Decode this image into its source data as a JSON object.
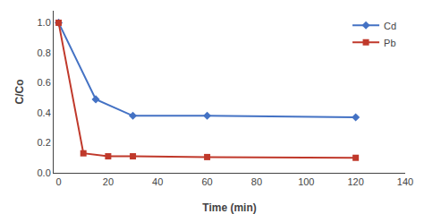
{
  "chart_data": {
    "type": "line",
    "xlabel": "Time (min)",
    "ylabel": "C/Co",
    "series": [
      {
        "name": "Cd",
        "color": "#4472C4",
        "marker": "diamond",
        "line_style": "solid",
        "x": [
          0,
          15,
          30,
          60,
          120
        ],
        "values": [
          1.0,
          0.49,
          0.38,
          0.38,
          0.37
        ]
      },
      {
        "name": "Pb",
        "color": "#C0392B",
        "marker": "square",
        "line_style": "solid",
        "x": [
          0,
          10,
          20,
          30,
          60,
          120
        ],
        "values": [
          1.0,
          0.13,
          0.11,
          0.11,
          0.105,
          0.1
        ]
      }
    ],
    "xlim": [
      -2,
      140
    ],
    "ylim": [
      0,
      1.08
    ],
    "xticks": [
      0,
      20,
      40,
      60,
      80,
      100,
      120,
      140
    ],
    "yticks": [
      {
        "value": 0,
        "label": "0.0"
      },
      0.2,
      0.4,
      0.6,
      0.8,
      {
        "value": 1.0,
        "label": "1.0"
      }
    ],
    "grid": false,
    "legend": "upper right"
  }
}
